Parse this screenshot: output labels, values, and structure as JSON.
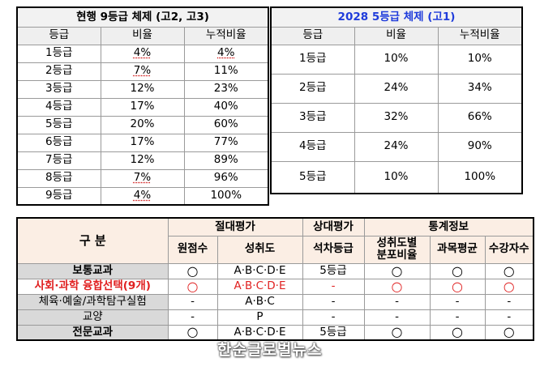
{
  "grade9": {
    "title": "현행  9등급  체제  (고2,  고3)",
    "headers": [
      "등급",
      "비율",
      "누적비율"
    ],
    "rows": [
      [
        "1등급",
        "4%",
        "4%"
      ],
      [
        "2등급",
        "7%",
        "11%"
      ],
      [
        "3등급",
        "12%",
        "23%"
      ],
      [
        "4등급",
        "17%",
        "40%"
      ],
      [
        "5등급",
        "20%",
        "60%"
      ],
      [
        "6등급",
        "17%",
        "77%"
      ],
      [
        "7등급",
        "12%",
        "89%"
      ],
      [
        "8등급",
        "7%",
        "96%"
      ],
      [
        "9등급",
        "4%",
        "100%"
      ]
    ]
  },
  "grade5": {
    "title": "2028  5등급  체제  (고1)",
    "headers": [
      "등급",
      "비율",
      "누적비율"
    ],
    "rows": [
      [
        "1등급",
        "10%",
        "10%"
      ],
      [
        "2등급",
        "24%",
        "34%"
      ],
      [
        "3등급",
        "32%",
        "66%"
      ],
      [
        "4등급",
        "24%",
        "90%"
      ],
      [
        "5등급",
        "10%",
        "100%"
      ]
    ]
  },
  "eval": {
    "gubun": "구  분",
    "groups": [
      "절대평가",
      "상대평가",
      "통계정보"
    ],
    "subheaders": [
      "원점수",
      "성취도",
      "석차등급",
      "성취도별\n분포비율",
      "과목평균",
      "수강자수"
    ],
    "rows": [
      {
        "label": "보통교과",
        "cells": [
          "○",
          "A·B·C·D·E",
          "5등급",
          "○",
          "○",
          "○"
        ]
      },
      {
        "label": "사회·과학  융합선택(9개)",
        "cells": [
          "○",
          "A·B·C·D·E",
          "-",
          "○",
          "○",
          "○"
        ]
      },
      {
        "label": "체육·예술/과학탐구실험",
        "cells": [
          "-",
          "A·B·C",
          "-",
          "-",
          "-",
          "-"
        ]
      },
      {
        "label": "교양",
        "cells": [
          "-",
          "P",
          "-",
          "-",
          "-",
          "-"
        ]
      },
      {
        "label": "전문교과",
        "cells": [
          "○",
          "A·B·C·D·E",
          "5등급",
          "○",
          "○",
          "○"
        ]
      }
    ]
  },
  "watermark": "한순글로벌뉴스",
  "colors": {
    "title5": "#1f3cdb",
    "highlight_red": "#e02020",
    "label_gray": "#d9d9d9",
    "header_cream": "#fbeee4"
  }
}
